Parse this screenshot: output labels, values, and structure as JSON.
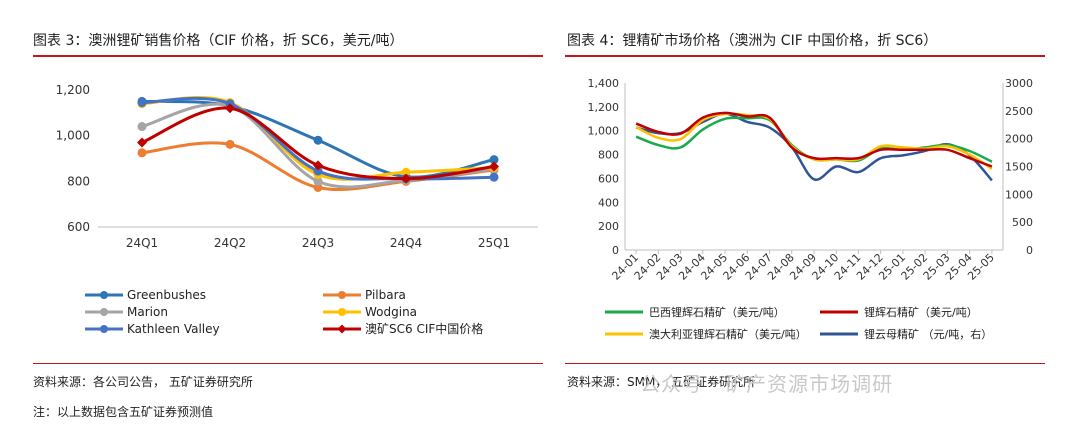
{
  "left_panel": {
    "title": "图表 3：澳洲锂矿销售价格（CIF 价格，折 SC6，美元/吨）",
    "source": "资料来源：各公司公告，  五矿证券研究所",
    "note": "注：以上数据包含五矿证券预测值"
  },
  "right_panel": {
    "title": "图表 4：锂精矿市场价格（澳洲为 CIF 中国价格，折 SC6）",
    "source": "资料来源：SMM，  五矿证券研究所"
  },
  "watermark": "公众号 · 矿产资源市场调研",
  "chart_data": [
    {
      "type": "line",
      "categories": [
        "24Q1",
        "24Q2",
        "24Q3",
        "24Q4",
        "25Q1"
      ],
      "ylim": [
        600,
        1200
      ],
      "yticks": [
        "600",
        "800",
        "1,000",
        "1,200"
      ],
      "series": [
        {
          "name": "Greenbushes",
          "color": "#2e75b6",
          "marker": "circle",
          "values": [
            1150,
            1130,
            980,
            820,
            895
          ]
        },
        {
          "name": "Pilbara",
          "color": "#ed7d31",
          "marker": "circle",
          "values": [
            925,
            962,
            773,
            800,
            850
          ]
        },
        {
          "name": "Marion",
          "color": "#a5a5a5",
          "marker": "circle",
          "values": [
            1040,
            1130,
            800,
            805,
            855
          ]
        },
        {
          "name": "Wodgina",
          "color": "#ffc000",
          "marker": "circle",
          "values": [
            1140,
            1145,
            830,
            840,
            860
          ]
        },
        {
          "name": "Kathleen Valley",
          "color": "#4472c4",
          "marker": "circle",
          "values": [
            1145,
            1140,
            845,
            812,
            818
          ]
        },
        {
          "name": "澳矿SC6 CIF中国价格",
          "color": "#c00000",
          "marker": "diamond",
          "values": [
            970,
            1120,
            870,
            812,
            865
          ]
        }
      ]
    },
    {
      "type": "line",
      "categories": [
        "24-01",
        "24-02",
        "24-03",
        "24-04",
        "24-05",
        "24-06",
        "24-07",
        "24-08",
        "24-09",
        "24-10",
        "24-11",
        "24-12",
        "25-01",
        "25-02",
        "25-03",
        "25-04",
        "25-05"
      ],
      "ylim_left": [
        0,
        1400
      ],
      "ylim_right": [
        0,
        3000
      ],
      "yticks_left": [
        "0",
        "200",
        "400",
        "600",
        "800",
        "1,000",
        "1,200",
        "1,400"
      ],
      "yticks_right": [
        "0",
        "500",
        "1000",
        "1500",
        "2000",
        "2500",
        "3000"
      ],
      "series": [
        {
          "name": "巴西锂辉石精矿（美元/吨）",
          "color": "#1aaa4b",
          "axis": "left",
          "values": [
            950,
            880,
            860,
            1010,
            1100,
            1105,
            1090,
            880,
            760,
            760,
            750,
            850,
            840,
            860,
            880,
            830,
            740
          ]
        },
        {
          "name": "锂辉石精矿（美元/吨）",
          "color": "#c00000",
          "axis": "left",
          "values": [
            1060,
            990,
            975,
            1110,
            1150,
            1120,
            1110,
            860,
            770,
            770,
            770,
            840,
            840,
            840,
            840,
            770,
            700
          ]
        },
        {
          "name": "澳大利亚锂辉石精矿（美元/吨）",
          "color": "#ffc000",
          "axis": "left",
          "values": [
            1030,
            940,
            930,
            1090,
            1140,
            1130,
            1100,
            870,
            760,
            760,
            760,
            870,
            860,
            850,
            870,
            800,
            680
          ]
        },
        {
          "name": "锂云母精矿 （元/吨，右）",
          "color": "#2f5597",
          "axis": "right",
          "values": [
            2200,
            2100,
            2100,
            2300,
            2450,
            2300,
            2200,
            1850,
            1270,
            1500,
            1400,
            1650,
            1700,
            1780,
            1900,
            1700,
            1250
          ]
        }
      ]
    }
  ]
}
